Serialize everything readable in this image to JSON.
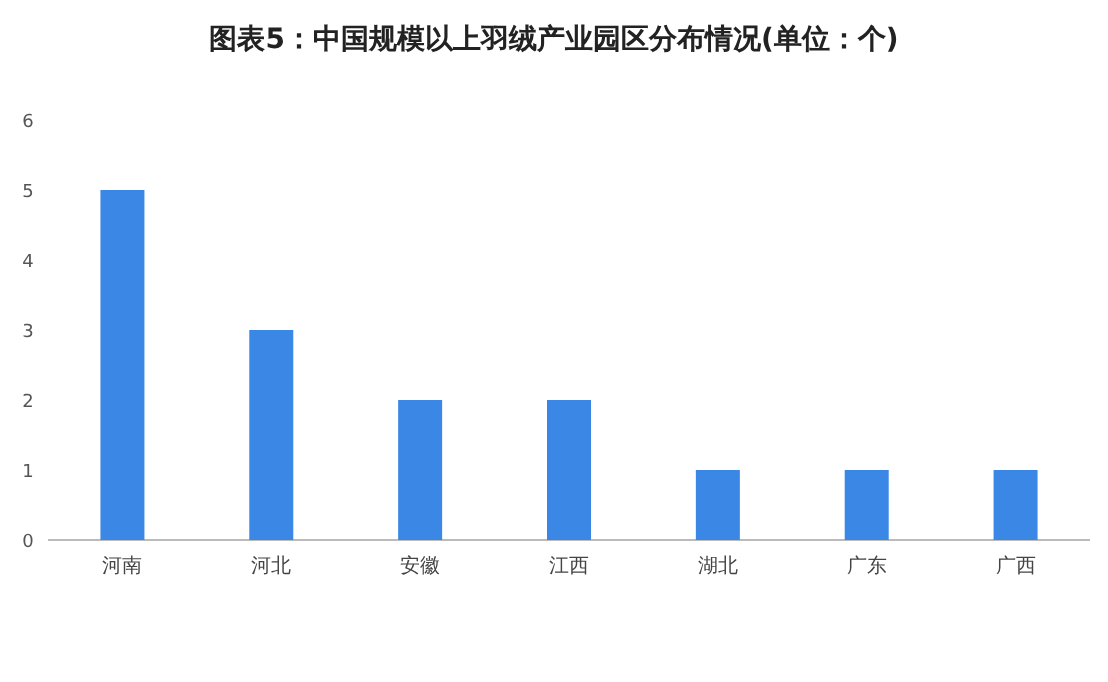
{
  "chart_data": {
    "type": "bar",
    "title": "图表5：中国规模以上羽绒产业园区分布情况(单位：个)",
    "categories": [
      "河南",
      "河北",
      "安徽",
      "江西",
      "湖北",
      "广东",
      "广西"
    ],
    "values": [
      5,
      3,
      2,
      2,
      1,
      1,
      1
    ],
    "color": "#3a87e6",
    "ylim": [
      0,
      6
    ],
    "yticks": [
      0,
      1,
      2,
      3,
      4,
      5,
      6
    ],
    "grid": false
  }
}
